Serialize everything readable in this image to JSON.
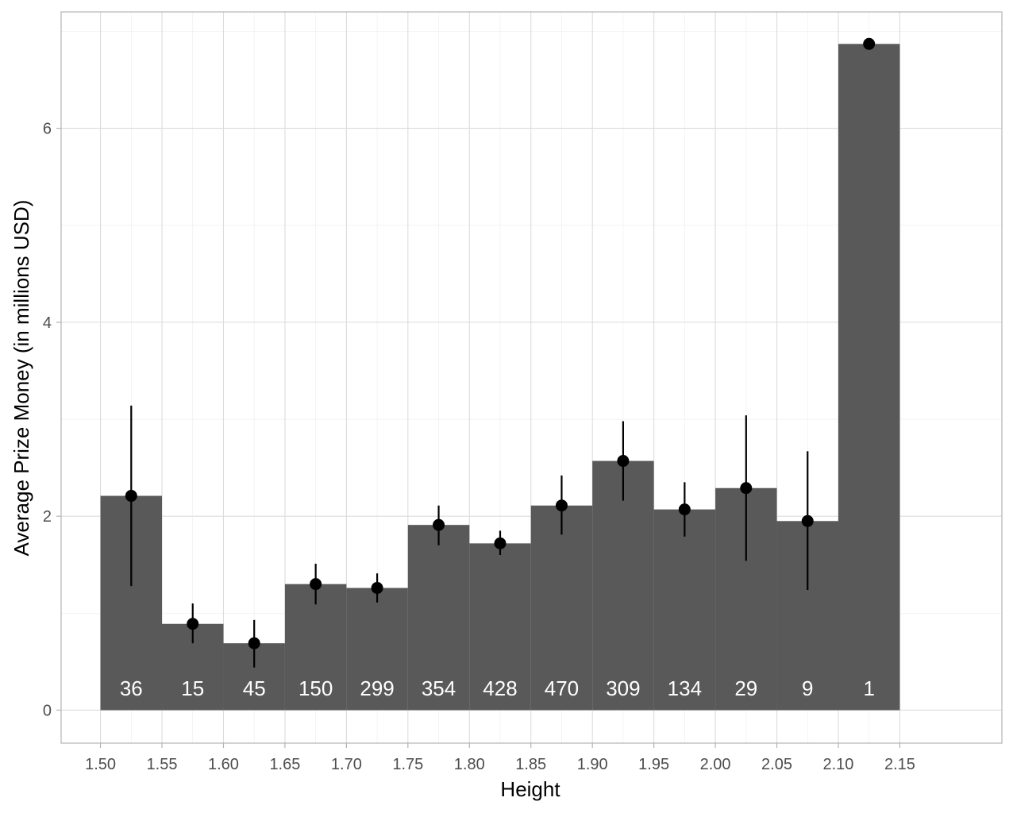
{
  "chart_data": {
    "type": "bar",
    "xlabel": "Height",
    "ylabel": "Average Prize Money (in millions USD)",
    "xlim": [
      1.468,
      2.233
    ],
    "ylim": [
      -0.34,
      7.2
    ],
    "x_ticks": [
      "1.50",
      "1.55",
      "1.60",
      "1.65",
      "1.70",
      "1.75",
      "1.80",
      "1.85",
      "1.90",
      "1.95",
      "2.00",
      "2.05",
      "2.10",
      "2.15"
    ],
    "y_ticks": [
      "0",
      "2",
      "4",
      "6"
    ],
    "grid": true,
    "bin_width": 0.05,
    "bars": [
      {
        "start": 1.5,
        "end": 1.55,
        "mean": 2.21,
        "lower": 1.28,
        "upper": 3.14,
        "count": "36"
      },
      {
        "start": 1.55,
        "end": 1.6,
        "mean": 0.89,
        "lower": 0.69,
        "upper": 1.1,
        "count": "15"
      },
      {
        "start": 1.6,
        "end": 1.65,
        "mean": 0.69,
        "lower": 0.44,
        "upper": 0.93,
        "count": "45"
      },
      {
        "start": 1.65,
        "end": 1.7,
        "mean": 1.3,
        "lower": 1.09,
        "upper": 1.51,
        "count": "150"
      },
      {
        "start": 1.7,
        "end": 1.75,
        "mean": 1.26,
        "lower": 1.11,
        "upper": 1.41,
        "count": "299"
      },
      {
        "start": 1.75,
        "end": 1.8,
        "mean": 1.91,
        "lower": 1.7,
        "upper": 2.11,
        "count": "354"
      },
      {
        "start": 1.8,
        "end": 1.85,
        "mean": 1.72,
        "lower": 1.6,
        "upper": 1.85,
        "count": "428"
      },
      {
        "start": 1.85,
        "end": 1.9,
        "mean": 2.11,
        "lower": 1.81,
        "upper": 2.42,
        "count": "470"
      },
      {
        "start": 1.9,
        "end": 1.95,
        "mean": 2.57,
        "lower": 2.16,
        "upper": 2.98,
        "count": "309"
      },
      {
        "start": 1.95,
        "end": 2.0,
        "mean": 2.07,
        "lower": 1.79,
        "upper": 2.35,
        "count": "134"
      },
      {
        "start": 2.0,
        "end": 2.05,
        "mean": 2.29,
        "lower": 1.54,
        "upper": 3.04,
        "count": "29"
      },
      {
        "start": 2.05,
        "end": 2.1,
        "mean": 1.95,
        "lower": 1.24,
        "upper": 2.67,
        "count": "9"
      },
      {
        "start": 2.1,
        "end": 2.15,
        "mean": 6.87,
        "lower": 6.87,
        "upper": 6.87,
        "count": "1"
      }
    ],
    "colors": {
      "bar": "#595959",
      "point": "#000000",
      "count_text": "#ffffff"
    }
  }
}
